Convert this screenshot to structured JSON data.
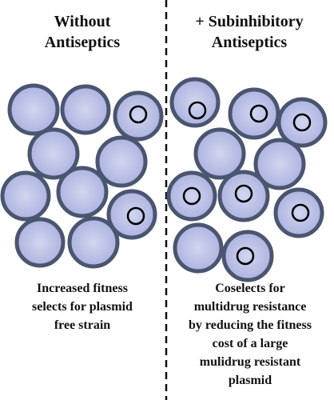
{
  "left": {
    "title": [
      "Without",
      "Antiseptics"
    ],
    "caption": [
      "Increased fitness",
      "selects for plasmid",
      "free strain"
    ]
  },
  "right": {
    "title": [
      "+ Subinhibitory",
      "Antiseptics"
    ],
    "caption": [
      "Coselects for",
      "multidrug resistance",
      "by reducing the fitness",
      "cost of a large",
      "mulidrug resistant",
      "plasmid"
    ]
  }
}
